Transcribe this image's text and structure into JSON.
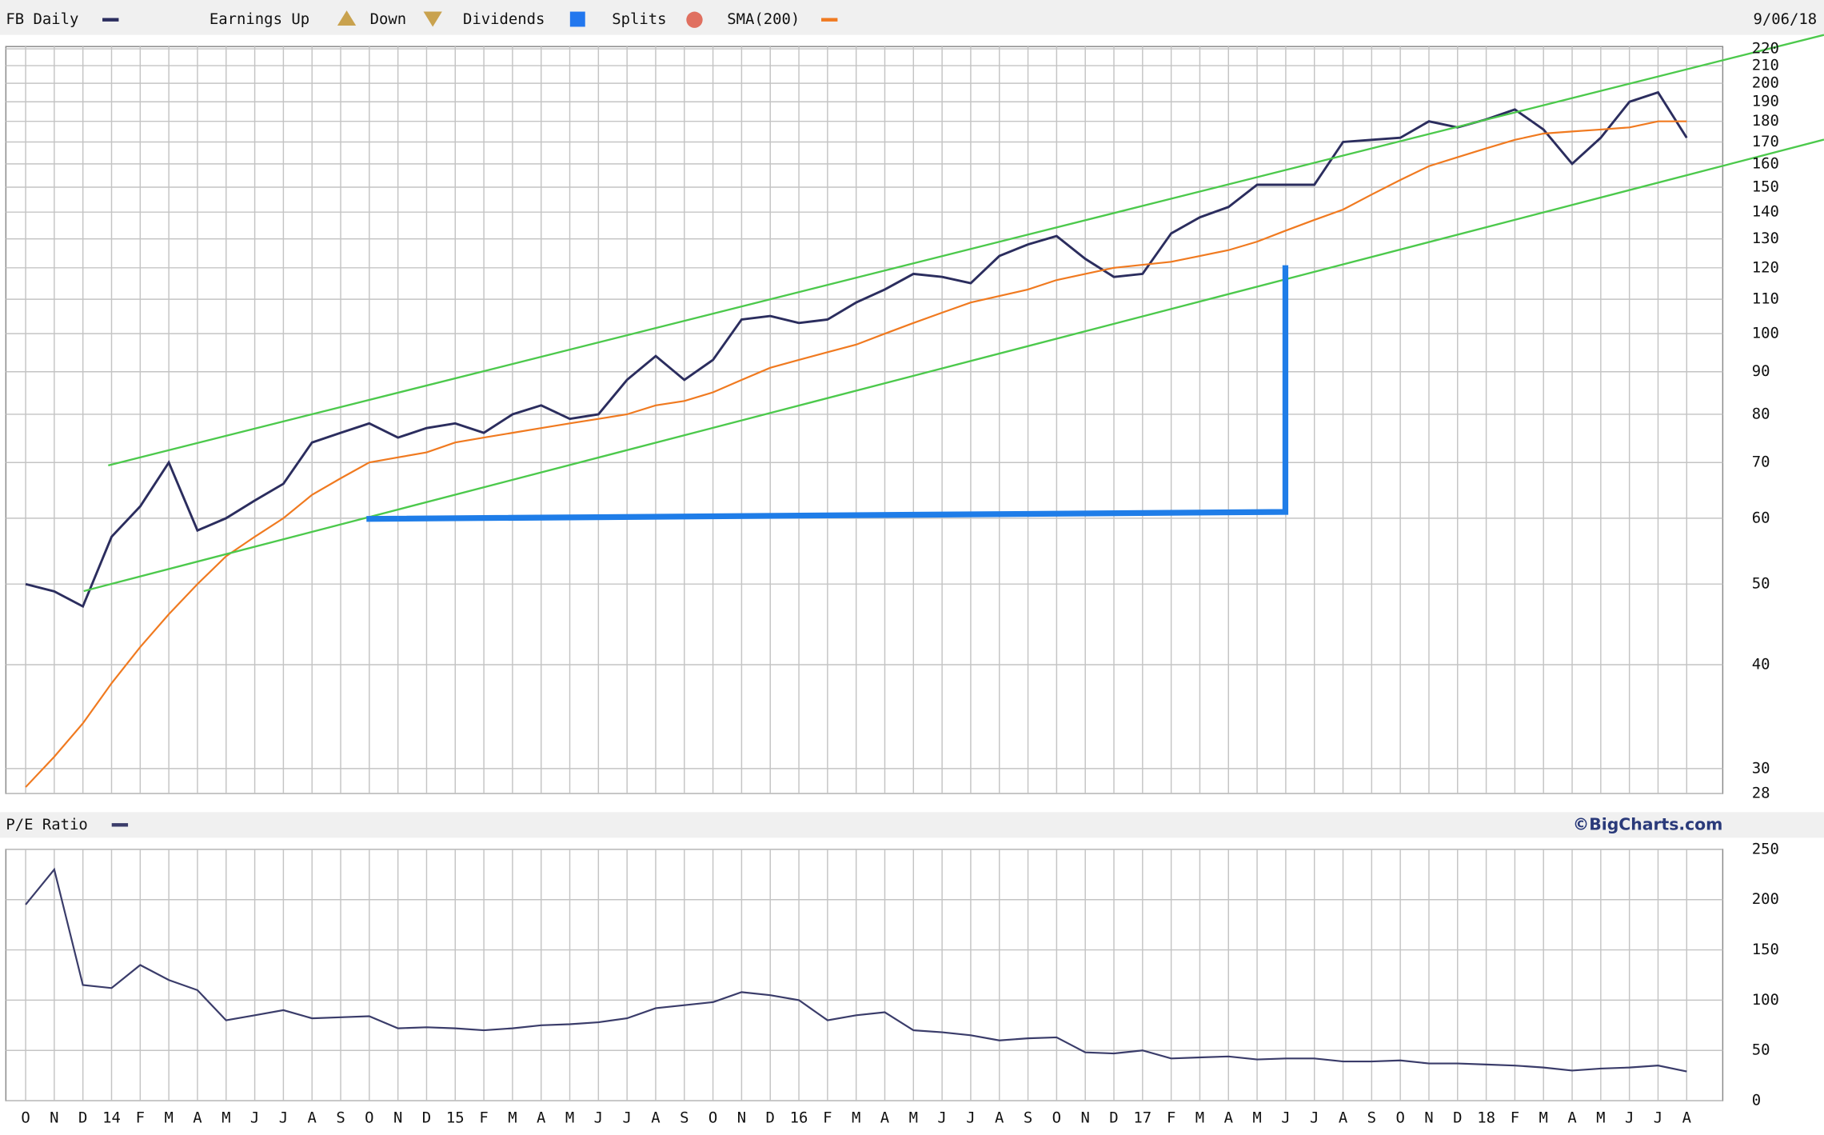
{
  "chart_data": [
    {
      "type": "line",
      "log": true,
      "grid": true,
      "date": "9/06/18",
      "legend": [
        {
          "label": "Earnings Up",
          "color": "#c9a24e"
        },
        {
          "label": "Down",
          "color": "#c9a24e"
        },
        {
          "label": "Dividends",
          "color": "#2277ee"
        },
        {
          "label": "Splits",
          "color": "#e07060"
        }
      ],
      "series": [
        {
          "name": "FB Daily",
          "color": "#2b2d5e",
          "values": [
            50,
            49,
            47,
            57,
            62,
            70,
            58,
            60,
            63,
            66,
            74,
            76,
            78,
            75,
            77,
            78,
            76,
            80,
            82,
            79,
            80,
            88,
            94,
            88,
            93,
            104,
            105,
            103,
            104,
            109,
            113,
            118,
            117,
            115,
            124,
            128,
            131,
            123,
            117,
            118,
            132,
            138,
            142,
            151,
            151,
            151,
            170,
            171,
            172,
            180,
            177,
            181,
            186,
            176,
            160,
            172,
            190,
            195,
            172
          ]
        },
        {
          "name": "SMA(200)",
          "color": "#f07a20",
          "values": [
            28.5,
            31,
            34,
            38,
            42,
            46,
            50,
            54,
            57,
            60,
            64,
            67,
            70,
            71,
            72,
            74,
            75,
            76,
            77,
            78,
            79,
            80,
            82,
            83,
            85,
            88,
            91,
            93,
            95,
            97,
            100,
            103,
            106,
            109,
            111,
            113,
            116,
            118,
            120,
            121,
            122,
            124,
            126,
            129,
            133,
            137,
            141,
            147,
            153,
            159,
            163,
            167,
            171,
            174,
            175,
            176,
            177,
            180,
            180
          ]
        }
      ],
      "ylim": [
        28,
        221.4
      ],
      "yticks": [
        28,
        30,
        40,
        50,
        60,
        70,
        80,
        90,
        100,
        110,
        120,
        130,
        140,
        150,
        160,
        170,
        180,
        190,
        200,
        210,
        220
      ]
    },
    {
      "type": "line",
      "grid": true,
      "source": "©BigCharts.com",
      "categories": [
        "O",
        "N",
        "D",
        "14",
        "F",
        "M",
        "A",
        "M",
        "J",
        "J",
        "A",
        "S",
        "O",
        "N",
        "D",
        "15",
        "F",
        "M",
        "A",
        "M",
        "J",
        "J",
        "A",
        "S",
        "O",
        "N",
        "D",
        "16",
        "F",
        "M",
        "A",
        "M",
        "J",
        "J",
        "A",
        "S",
        "O",
        "N",
        "D",
        "17",
        "F",
        "M",
        "A",
        "M",
        "J",
        "J",
        "A",
        "S",
        "O",
        "N",
        "D",
        "18",
        "F",
        "M",
        "A",
        "M",
        "J",
        "J",
        "A"
      ],
      "series": [
        {
          "name": "P/E Ratio",
          "color": "#3a3c6a",
          "values": [
            195,
            230,
            115,
            112,
            135,
            120,
            110,
            80,
            85,
            90,
            82,
            83,
            84,
            72,
            73,
            72,
            70,
            72,
            75,
            76,
            78,
            82,
            92,
            95,
            98,
            108,
            105,
            100,
            80,
            85,
            88,
            70,
            68,
            65,
            60,
            62,
            63,
            48,
            47,
            50,
            42,
            43,
            44,
            41,
            42,
            42,
            39,
            39,
            40,
            37,
            37,
            36,
            35,
            33,
            30,
            32,
            33,
            35,
            29
          ]
        }
      ],
      "ylim": [
        0,
        250
      ],
      "yticks": [
        0,
        50,
        100,
        150,
        200,
        250
      ]
    }
  ]
}
